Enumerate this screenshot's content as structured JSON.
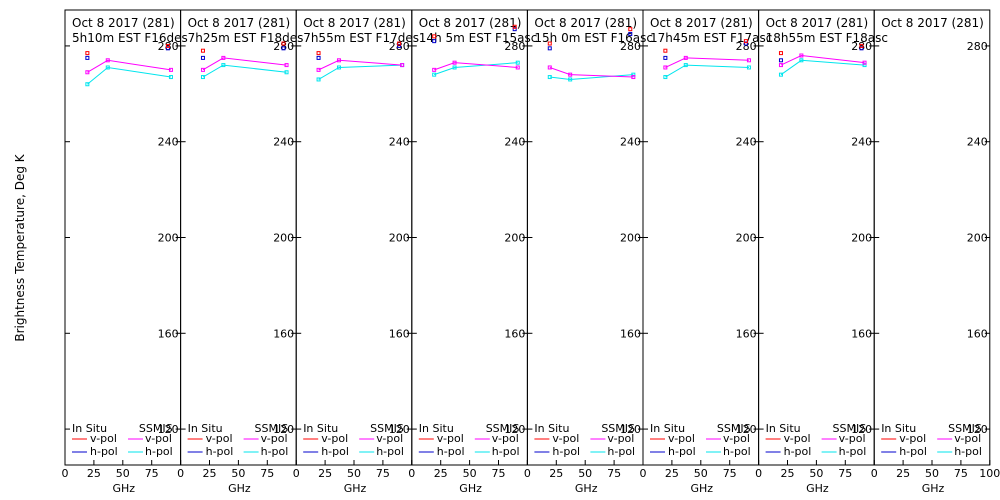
{
  "ylabel": "Brightness Temperature, Deg K",
  "xlabel": "GHz",
  "legend": {
    "insitu": "In Situ",
    "ssmis": "SSMIS",
    "vpol": "v-pol",
    "hpol": "h-pol"
  },
  "colors": {
    "insitu_v": "#ff0000",
    "insitu_h": "#0000cc",
    "ssmis_v": "#ff00ff",
    "ssmis_h": "#00e5ee",
    "frame": "#000000"
  },
  "chart_data": {
    "type": "line",
    "xlim": [
      0,
      100
    ],
    "ylim": [
      105,
      295
    ],
    "xticks": [
      "0",
      "25",
      "50",
      "75",
      "100"
    ],
    "yticks": [
      120,
      160,
      200,
      240,
      280
    ],
    "panels": [
      {
        "title1": "Oct 8 2017 (281)",
        "title2": "5h10m EST F16des",
        "insitu_v": [
          [
            19.35,
            277
          ],
          [
            89,
            280
          ]
        ],
        "insitu_h": [
          [
            19.35,
            275
          ],
          [
            89,
            279
          ]
        ],
        "ssmis_v": [
          [
            19.35,
            269
          ],
          [
            37,
            274
          ],
          [
            91.65,
            270
          ]
        ],
        "ssmis_h": [
          [
            19.35,
            264
          ],
          [
            37,
            271
          ],
          [
            91.65,
            267
          ]
        ]
      },
      {
        "title1": "Oct 8 2017 (281)",
        "title2": "7h25m EST F18des",
        "insitu_v": [
          [
            19.35,
            278
          ],
          [
            89,
            281
          ]
        ],
        "insitu_h": [
          [
            19.35,
            275
          ],
          [
            89,
            279
          ]
        ],
        "ssmis_v": [
          [
            19.35,
            270
          ],
          [
            37,
            275
          ],
          [
            91.65,
            272
          ]
        ],
        "ssmis_h": [
          [
            19.35,
            267
          ],
          [
            37,
            272
          ],
          [
            91.65,
            269
          ]
        ]
      },
      {
        "title1": "Oct 8 2017 (281)",
        "title2": "7h55m EST F17des",
        "insitu_v": [
          [
            19.35,
            277
          ],
          [
            89,
            281
          ]
        ],
        "insitu_h": [
          [
            19.35,
            275
          ],
          [
            89,
            280
          ]
        ],
        "ssmis_v": [
          [
            19.35,
            270
          ],
          [
            37,
            274
          ],
          [
            91.65,
            272
          ]
        ],
        "ssmis_h": [
          [
            19.35,
            266
          ],
          [
            37,
            271
          ],
          [
            91.65,
            272
          ]
        ]
      },
      {
        "title1": "Oct 8 2017 (281)",
        "title2": "14h 5m EST F15asc",
        "insitu_v": [
          [
            19.35,
            284
          ],
          [
            89,
            288
          ]
        ],
        "insitu_h": [
          [
            19.35,
            282
          ],
          [
            89,
            287
          ]
        ],
        "ssmis_v": [
          [
            19.35,
            270
          ],
          [
            37,
            273
          ],
          [
            91.65,
            271
          ]
        ],
        "ssmis_h": [
          [
            19.35,
            268
          ],
          [
            37,
            271
          ],
          [
            91.65,
            273
          ]
        ]
      },
      {
        "title1": "Oct 8 2017 (281)",
        "title2": "15h 0m EST F16asc",
        "insitu_v": [
          [
            19.35,
            281
          ],
          [
            89,
            287
          ]
        ],
        "insitu_h": [
          [
            19.35,
            279
          ],
          [
            89,
            285
          ]
        ],
        "ssmis_v": [
          [
            19.35,
            271
          ],
          [
            37,
            268
          ],
          [
            91.65,
            267
          ]
        ],
        "ssmis_h": [
          [
            19.35,
            267
          ],
          [
            37,
            266
          ],
          [
            91.65,
            268
          ]
        ]
      },
      {
        "title1": "Oct 8 2017 (281)",
        "title2": "17h45m EST F17asc",
        "insitu_v": [
          [
            19.35,
            278
          ],
          [
            89,
            282
          ]
        ],
        "insitu_h": [
          [
            19.35,
            275
          ],
          [
            89,
            281
          ]
        ],
        "ssmis_v": [
          [
            19.35,
            271
          ],
          [
            37,
            275
          ],
          [
            91.65,
            274
          ]
        ],
        "ssmis_h": [
          [
            19.35,
            267
          ],
          [
            37,
            272
          ],
          [
            91.65,
            271
          ]
        ]
      },
      {
        "title1": "Oct 8 2017 (281)",
        "title2": "18h55m EST F18asc",
        "insitu_v": [
          [
            19.35,
            277
          ],
          [
            89,
            280
          ]
        ],
        "insitu_h": [
          [
            19.35,
            274
          ],
          [
            89,
            279
          ]
        ],
        "ssmis_v": [
          [
            19.35,
            272
          ],
          [
            37,
            276
          ],
          [
            91.65,
            273
          ]
        ],
        "ssmis_h": [
          [
            19.35,
            268
          ],
          [
            37,
            274
          ],
          [
            91.65,
            272
          ]
        ]
      },
      {
        "title1": "Oct 8 2017 (281)",
        "title2": "",
        "insitu_v": [],
        "insitu_h": [],
        "ssmis_v": [],
        "ssmis_h": []
      }
    ]
  }
}
